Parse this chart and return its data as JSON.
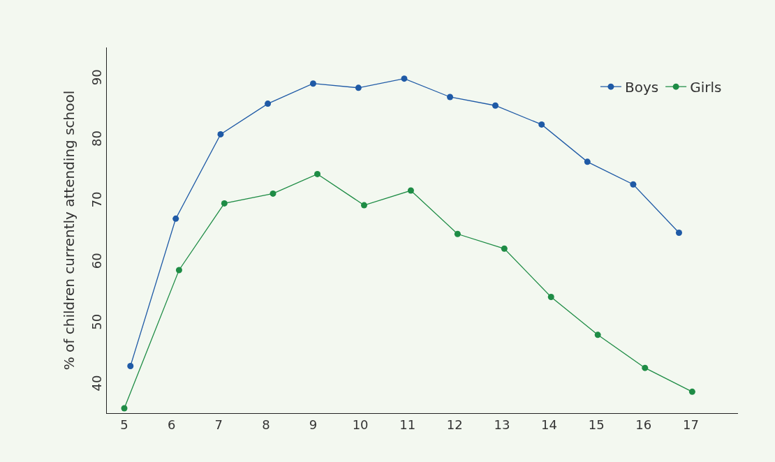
{
  "chart_data": {
    "type": "line",
    "ylabel": "% of children currently attending school",
    "xlim": [
      4.63,
      18.0
    ],
    "xticks": [
      5,
      6,
      7,
      8,
      9,
      10,
      11,
      12,
      13,
      14,
      15,
      16,
      17
    ],
    "ylim": [
      35.4,
      95.2
    ],
    "yticks": [
      40,
      50,
      60,
      70,
      80,
      90
    ],
    "grid": false,
    "legend": "top right",
    "marker": "circle",
    "line_style": "solid",
    "series": [
      {
        "name": "Boys",
        "color": "#1f5aa6",
        "x": [
          5.13,
          6.09,
          7.04,
          8.04,
          9.0,
          9.96,
          10.93,
          11.9,
          12.86,
          13.84,
          14.81,
          15.78,
          16.75
        ],
        "values": [
          43.1,
          67.2,
          81.0,
          86.0,
          89.3,
          88.6,
          90.1,
          87.1,
          85.7,
          82.6,
          76.5,
          72.8,
          64.9
        ]
      },
      {
        "name": "Girls",
        "color": "#1e8c45",
        "x": [
          5.0,
          6.16,
          7.12,
          8.15,
          9.09,
          10.08,
          11.07,
          12.06,
          13.05,
          14.04,
          15.03,
          16.03,
          17.03
        ],
        "values": [
          36.2,
          58.8,
          69.7,
          71.3,
          74.5,
          69.4,
          71.8,
          64.7,
          62.3,
          54.4,
          48.2,
          42.8,
          38.9
        ]
      }
    ]
  }
}
